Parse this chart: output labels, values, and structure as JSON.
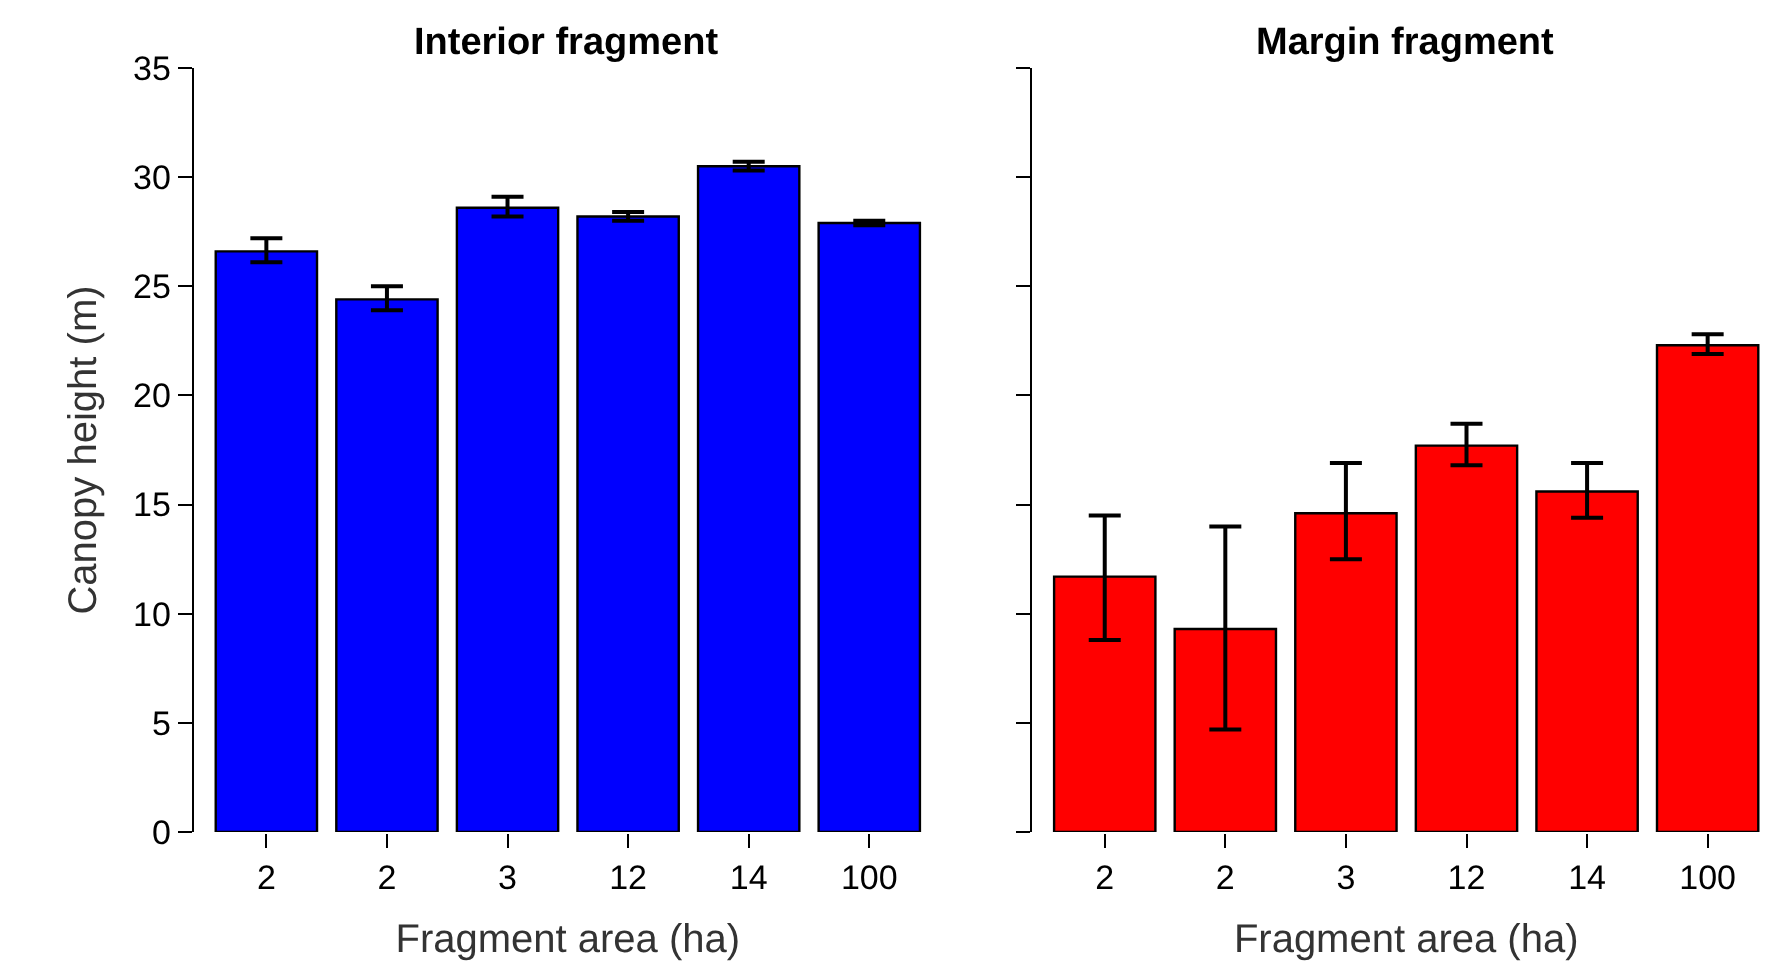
{
  "chart_data": [
    {
      "type": "bar",
      "title": "Interior fragment",
      "xlabel": "Fragment area (ha)",
      "ylabel": "Canopy height (m)",
      "categories": [
        "2",
        "2",
        "3",
        "12",
        "14",
        "100"
      ],
      "series": [
        {
          "color": "#0000ff",
          "values": [
            26.6,
            24.4,
            28.6,
            28.2,
            30.5,
            27.9
          ],
          "errors": [
            [
              26.1,
              27.2
            ],
            [
              23.9,
              25.0
            ],
            [
              28.2,
              29.1
            ],
            [
              28.0,
              28.4
            ],
            [
              30.3,
              30.7
            ],
            [
              27.8,
              28.0
            ]
          ]
        }
      ],
      "ylim": [
        0,
        35
      ],
      "yticks": [
        0,
        5,
        10,
        15,
        20,
        25,
        30,
        35
      ]
    },
    {
      "type": "bar",
      "title": "Margin fragment",
      "xlabel": "Fragment area (ha)",
      "categories": [
        "2",
        "2",
        "3",
        "12",
        "14",
        "100"
      ],
      "series": [
        {
          "color": "#ff0000",
          "values": [
            11.7,
            9.3,
            14.6,
            17.7,
            15.6,
            22.3
          ],
          "errors": [
            [
              8.8,
              14.5
            ],
            [
              4.7,
              14.0
            ],
            [
              12.5,
              16.9
            ],
            [
              16.8,
              18.7
            ],
            [
              14.4,
              16.9
            ],
            [
              21.9,
              22.8
            ]
          ]
        }
      ],
      "ylim": [
        0,
        35
      ],
      "yticks": [
        0,
        5,
        10,
        15,
        20,
        25,
        30,
        35
      ],
      "tick_labels": "x"
    }
  ]
}
